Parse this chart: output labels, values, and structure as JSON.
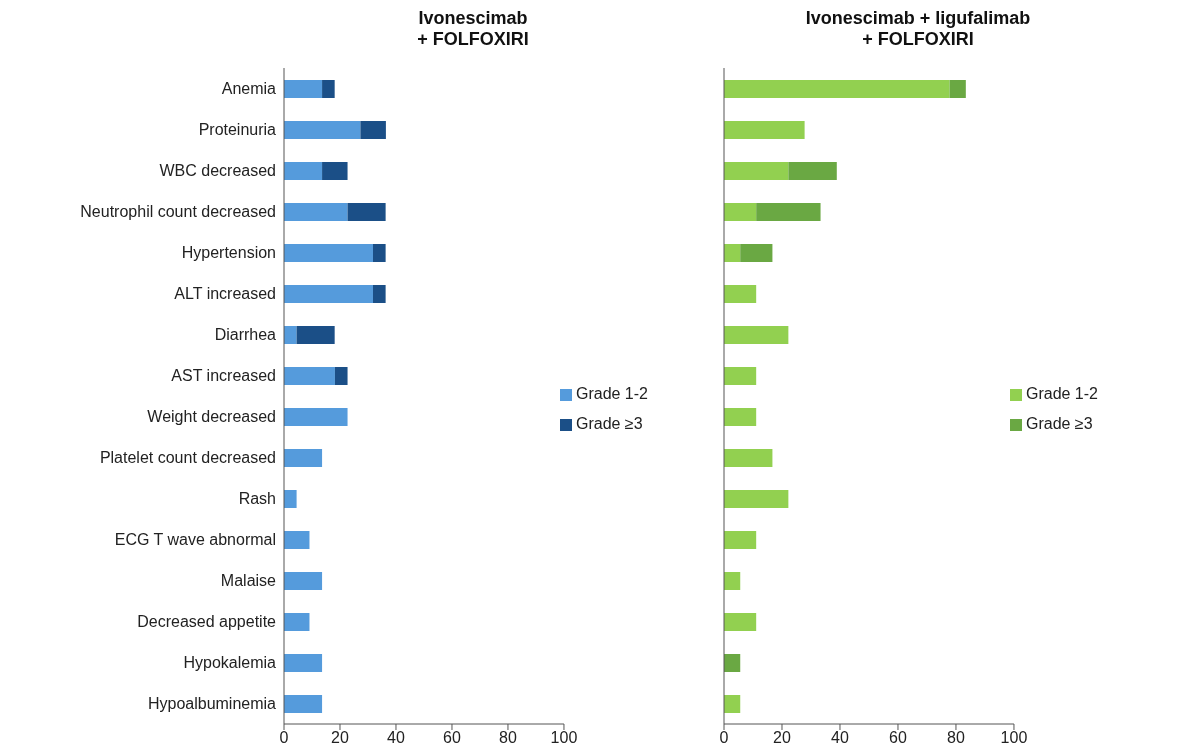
{
  "chart_data": [
    {
      "type": "bar",
      "title": "Ivonescimab\n+ FOLFOXIRI",
      "orientation": "horizontal",
      "stacked": true,
      "categories": [
        "Anemia",
        "Proteinuria",
        "WBC decreased",
        "Neutrophil count decreased",
        "Hypertension",
        "ALT increased",
        "Diarrhea",
        "AST increased",
        "Weight decreased",
        "Platelet count decreased",
        "Rash",
        "ECG T wave abnormal",
        "Malaise",
        "Decreased appetite",
        "Hypokalemia",
        "Hypoalbuminemia"
      ],
      "series": [
        {
          "name": "Grade 1-2",
          "color": "#559bdc",
          "values": [
            13.6,
            27.3,
            13.6,
            22.7,
            31.8,
            31.8,
            4.5,
            18.2,
            22.7,
            13.6,
            4.5,
            9.1,
            13.6,
            9.1,
            13.6,
            13.6
          ]
        },
        {
          "name": "Grade ≥3",
          "color": "#1b4f87",
          "values": [
            4.5,
            9.1,
            9.1,
            13.6,
            4.5,
            4.5,
            13.6,
            4.5,
            0,
            0,
            0,
            0,
            0,
            0,
            0,
            0
          ]
        }
      ],
      "xlim": [
        0,
        100
      ],
      "xticks": [
        0,
        20,
        40,
        60,
        80,
        100
      ],
      "grid": false,
      "legend": "right"
    },
    {
      "type": "bar",
      "title": "Ivonescimab + ligufalimab\n+ FOLFOXIRI",
      "orientation": "horizontal",
      "stacked": true,
      "tick_labels": "x",
      "categories": [
        null,
        null,
        null,
        null,
        null,
        null,
        null,
        null,
        null,
        null,
        null,
        null,
        null,
        null,
        null,
        null
      ],
      "series": [
        {
          "name": "Grade 1-2",
          "color": "#92d050",
          "values": [
            77.8,
            27.8,
            22.2,
            11.1,
            5.6,
            11.1,
            22.2,
            11.1,
            11.1,
            16.7,
            22.2,
            11.1,
            5.6,
            11.1,
            0,
            5.6
          ]
        },
        {
          "name": "Grade ≥3",
          "color": "#6aa843",
          "values": [
            5.6,
            0,
            16.7,
            22.2,
            11.1,
            0,
            0,
            0,
            0,
            0,
            0,
            0,
            0,
            0,
            5.6,
            0
          ]
        }
      ],
      "xlim": [
        0,
        100
      ],
      "xticks": [
        0,
        20,
        40,
        60,
        80,
        100
      ],
      "grid": false,
      "legend": "right"
    }
  ]
}
